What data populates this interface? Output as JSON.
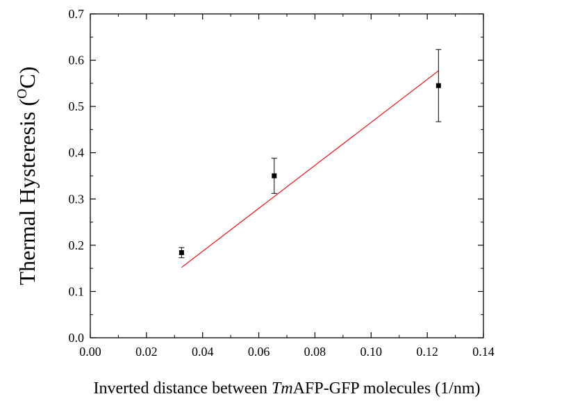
{
  "chart_data": {
    "type": "scatter",
    "title": "",
    "xlabel": {
      "prefix": "Inverted distance between ",
      "italic": "Tm",
      "suffix": "AFP-GFP molecules (1/nm)"
    },
    "ylabel": {
      "main": "Thermal Hysteresis (",
      "sup": "O",
      "unit": "C)"
    },
    "xlim": [
      0.0,
      0.14
    ],
    "ylim": [
      0.0,
      0.7
    ],
    "x_ticks": [
      "0.00",
      "0.02",
      "0.04",
      "0.06",
      "0.08",
      "0.10",
      "0.12",
      "0.14"
    ],
    "y_ticks": [
      "0.0",
      "0.1",
      "0.2",
      "0.3",
      "0.4",
      "0.5",
      "0.6",
      "0.7"
    ],
    "grid": false,
    "points": [
      {
        "x": 0.0325,
        "y": 0.184,
        "err": 0.011
      },
      {
        "x": 0.0655,
        "y": 0.35,
        "err": 0.038
      },
      {
        "x": 0.124,
        "y": 0.545,
        "err": 0.078
      }
    ],
    "fit_line": {
      "x": [
        0.0325,
        0.124
      ],
      "y": [
        0.152,
        0.577
      ]
    },
    "colors": {
      "points": "#000000",
      "fit": "#e8141e",
      "axes": "#000000"
    }
  }
}
